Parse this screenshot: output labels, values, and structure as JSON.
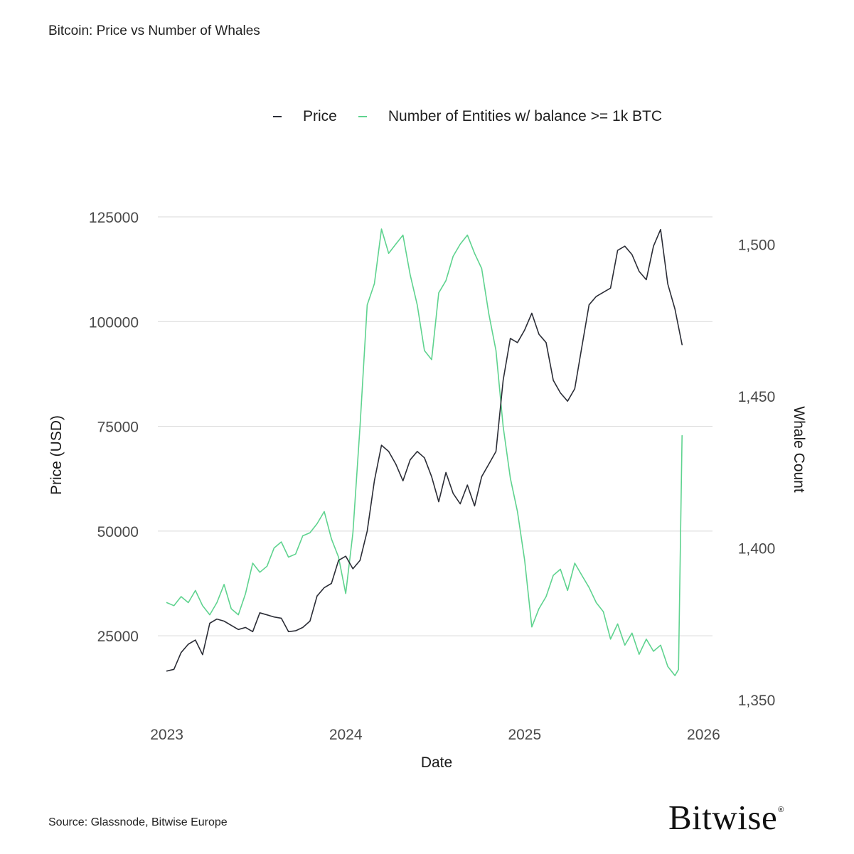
{
  "header": {
    "title": "Bitcoin: Price vs Number of Whales"
  },
  "footer": {
    "source": "Source: Glassnode, Bitwise Europe",
    "brand": "Bitwise",
    "brand_mark": "®"
  },
  "colors": {
    "price": "#2b2d36",
    "whales": "#5fd38f",
    "grid": "#d9d9d9",
    "text": "#4a4a4a"
  },
  "chart_data": {
    "type": "line",
    "title": "Bitcoin: Price vs Number of Whales",
    "xlabel": "Date",
    "ylabel": "Price (USD)",
    "y2label": "Whale Count",
    "legend_position": "top-center",
    "grid": true,
    "xlim": [
      2022.95,
      2026.05
    ],
    "ylim": [
      5000,
      125000
    ],
    "y2lim": [
      1343.5,
      1509
    ],
    "x_ticks": [
      2023,
      2024,
      2025,
      2026
    ],
    "x_tick_labels": [
      "2023",
      "2024",
      "2025",
      "2026"
    ],
    "y_ticks": [
      25000,
      50000,
      75000,
      100000,
      125000
    ],
    "y_tick_labels": [
      "25000",
      "50000",
      "75000",
      "100000",
      "125000"
    ],
    "y2_ticks": [
      1350,
      1400,
      1450,
      1500
    ],
    "y2_tick_labels": [
      "1,350",
      "1,400",
      "1,450",
      "1,500"
    ],
    "series": [
      {
        "name": "Price",
        "legend_label": "Price",
        "axis": "left",
        "x": [
          2023.0,
          2023.04,
          2023.08,
          2023.12,
          2023.16,
          2023.2,
          2023.24,
          2023.28,
          2023.32,
          2023.36,
          2023.4,
          2023.44,
          2023.48,
          2023.52,
          2023.56,
          2023.6,
          2023.64,
          2023.68,
          2023.72,
          2023.76,
          2023.8,
          2023.84,
          2023.88,
          2023.92,
          2023.96,
          2024.0,
          2024.04,
          2024.08,
          2024.12,
          2024.16,
          2024.2,
          2024.24,
          2024.28,
          2024.32,
          2024.36,
          2024.4,
          2024.44,
          2024.48,
          2024.52,
          2024.56,
          2024.6,
          2024.64,
          2024.68,
          2024.72,
          2024.76,
          2024.8,
          2024.84,
          2024.88,
          2024.92,
          2024.96,
          2025.0,
          2025.04,
          2025.08,
          2025.12,
          2025.16,
          2025.2,
          2025.24,
          2025.28,
          2025.32,
          2025.36,
          2025.4,
          2025.44,
          2025.48,
          2025.52,
          2025.56,
          2025.6,
          2025.64,
          2025.68,
          2025.72,
          2025.76,
          2025.8,
          2025.84,
          2025.88
        ],
        "values": [
          16600,
          17000,
          21000,
          23000,
          24000,
          20500,
          28000,
          29000,
          28500,
          27500,
          26500,
          27000,
          26000,
          30500,
          30000,
          29500,
          29200,
          26000,
          26200,
          27000,
          28500,
          34500,
          36500,
          37500,
          43000,
          44000,
          41000,
          43000,
          50000,
          62000,
          70500,
          69000,
          66000,
          62000,
          67000,
          69000,
          67500,
          63000,
          57000,
          64000,
          59000,
          56500,
          61000,
          56000,
          63000,
          66000,
          69000,
          86000,
          96000,
          95000,
          98000,
          102000,
          97000,
          95000,
          86000,
          83000,
          81000,
          84000,
          94000,
          104000,
          106000,
          107000,
          108000,
          117000,
          118000,
          116000,
          112000,
          110000,
          118000,
          122000,
          109000,
          103000,
          94500
        ]
      },
      {
        "name": "Number of Entities w/ balance >= 1k BTC",
        "legend_label": "Number of Entities w/ balance >= 1k BTC",
        "axis": "right",
        "x": [
          2023.0,
          2023.04,
          2023.08,
          2023.12,
          2023.16,
          2023.2,
          2023.24,
          2023.28,
          2023.32,
          2023.36,
          2023.4,
          2023.44,
          2023.48,
          2023.52,
          2023.56,
          2023.6,
          2023.64,
          2023.68,
          2023.72,
          2023.76,
          2023.8,
          2023.84,
          2023.88,
          2023.92,
          2023.96,
          2024.0,
          2024.04,
          2024.08,
          2024.12,
          2024.16,
          2024.2,
          2024.24,
          2024.28,
          2024.32,
          2024.36,
          2024.4,
          2024.44,
          2024.48,
          2024.52,
          2024.56,
          2024.6,
          2024.64,
          2024.68,
          2024.72,
          2024.76,
          2024.8,
          2024.84,
          2024.88,
          2024.92,
          2024.96,
          2025.0,
          2025.04,
          2025.08,
          2025.12,
          2025.16,
          2025.2,
          2025.24,
          2025.28,
          2025.32,
          2025.36,
          2025.4,
          2025.44,
          2025.48,
          2025.52,
          2025.56,
          2025.6,
          2025.64,
          2025.68,
          2025.72,
          2025.76,
          2025.8,
          2025.84,
          2025.86,
          2025.88
        ],
        "values": [
          1382,
          1381,
          1384,
          1382,
          1386,
          1381,
          1378,
          1382,
          1388,
          1380,
          1378,
          1385,
          1395,
          1392,
          1394,
          1400,
          1402,
          1397,
          1398,
          1404,
          1405,
          1408,
          1412,
          1403,
          1397,
          1385,
          1405,
          1440,
          1480,
          1487,
          1505,
          1497,
          1500,
          1503,
          1490,
          1480,
          1465,
          1462,
          1484,
          1488,
          1496,
          1500,
          1503,
          1497,
          1492,
          1477,
          1465,
          1440,
          1423,
          1412,
          1396,
          1374,
          1380,
          1384,
          1391,
          1393,
          1386,
          1395,
          1391,
          1387,
          1382,
          1379,
          1370,
          1375,
          1368,
          1372,
          1365,
          1370,
          1366,
          1368,
          1361,
          1358,
          1360,
          1437
        ]
      }
    ]
  }
}
